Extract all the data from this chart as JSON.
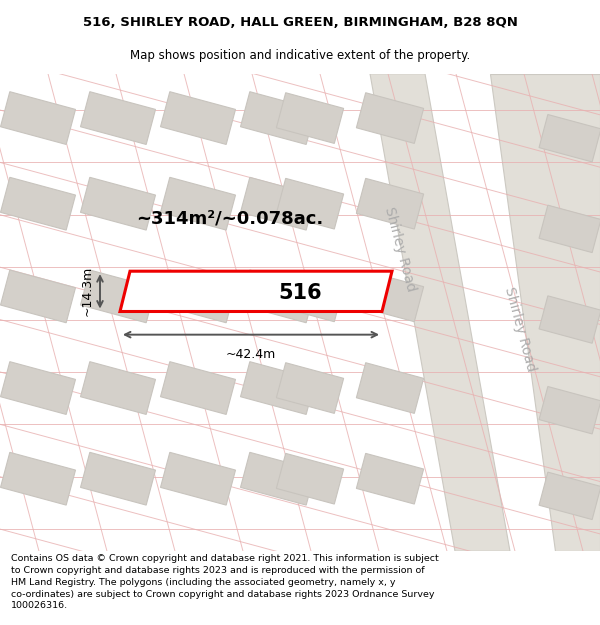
{
  "title_line1": "516, SHIRLEY ROAD, HALL GREEN, BIRMINGHAM, B28 8QN",
  "title_line2": "Map shows position and indicative extent of the property.",
  "footer_text": "Contains OS data © Crown copyright and database right 2021. This information is subject to Crown copyright and database rights 2023 and is reproduced with the permission of HM Land Registry. The polygons (including the associated geometry, namely x, y co-ordinates) are subject to Crown copyright and database rights 2023 Ordnance Survey 100026316.",
  "area_text": "~314m²/~0.078ac.",
  "property_number": "516",
  "dim_width": "~42.4m",
  "dim_height": "~14.3m",
  "road_label1": "Shirley Road",
  "road_label2": "Shirley Road",
  "map_bg": "#f7f5f2",
  "road_bg": "#e8e5e0",
  "road_strip_color": "#dedad4",
  "plot_outline_color": "#ee0000",
  "plot_fill_color": "#ffffff",
  "building_fill": "#d4d0ca",
  "building_edge": "#c8c4be",
  "block_fill": "#e8e5e0",
  "block_edge": "#d0ccc6",
  "dim_color": "#555555",
  "title_fontsize": 9.5,
  "subtitle_fontsize": 8.5,
  "footer_fontsize": 6.8,
  "area_fontsize": 13,
  "num_fontsize": 15,
  "road_label_fontsize": 10,
  "dim_fontsize": 9
}
